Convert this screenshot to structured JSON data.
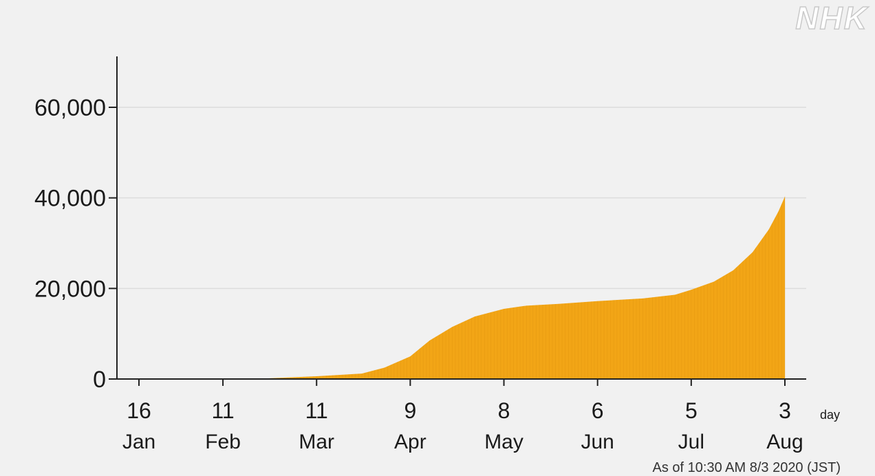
{
  "brand": {
    "watermark": "NHK"
  },
  "timestamp": "As of 10:30 AM 8/3 2020 (JST)",
  "chart_data": {
    "type": "area",
    "title": "",
    "xlabel": "day",
    "ylabel": "",
    "ylim": [
      0,
      70000
    ],
    "yticks": [
      {
        "value": 0,
        "label": "0"
      },
      {
        "value": 20000,
        "label": "20,000"
      },
      {
        "value": 40000,
        "label": "40,000"
      },
      {
        "value": 60000,
        "label": "60,000"
      }
    ],
    "xlim": [
      "2020-01-16",
      "2020-08-03"
    ],
    "xticks": [
      {
        "date": "2020-01-16",
        "day": "16",
        "month": "Jan"
      },
      {
        "date": "2020-02-11",
        "day": "11",
        "month": "Feb"
      },
      {
        "date": "2020-03-11",
        "day": "11",
        "month": "Mar"
      },
      {
        "date": "2020-04-09",
        "day": "9",
        "month": "Apr"
      },
      {
        "date": "2020-05-08",
        "day": "8",
        "month": "May"
      },
      {
        "date": "2020-06-06",
        "day": "6",
        "month": "Jun"
      },
      {
        "date": "2020-07-05",
        "day": "5",
        "month": "Jul"
      },
      {
        "date": "2020-08-03",
        "day": "3",
        "month": "Aug"
      }
    ],
    "grid": true,
    "colors": {
      "fill": "#F2A516",
      "grid": "#dcdcdc",
      "axis": "#222222"
    },
    "series": [
      {
        "points": [
          {
            "x": "2020-01-16",
            "y": 0
          },
          {
            "x": "2020-02-11",
            "y": 0
          },
          {
            "x": "2020-02-25",
            "y": 150
          },
          {
            "x": "2020-03-11",
            "y": 600
          },
          {
            "x": "2020-03-25",
            "y": 1200
          },
          {
            "x": "2020-04-01",
            "y": 2500
          },
          {
            "x": "2020-04-09",
            "y": 5000
          },
          {
            "x": "2020-04-15",
            "y": 8500
          },
          {
            "x": "2020-04-22",
            "y": 11500
          },
          {
            "x": "2020-04-29",
            "y": 13800
          },
          {
            "x": "2020-05-08",
            "y": 15500
          },
          {
            "x": "2020-05-15",
            "y": 16200
          },
          {
            "x": "2020-05-25",
            "y": 16600
          },
          {
            "x": "2020-06-06",
            "y": 17200
          },
          {
            "x": "2020-06-20",
            "y": 17800
          },
          {
            "x": "2020-06-30",
            "y": 18600
          },
          {
            "x": "2020-07-05",
            "y": 19700
          },
          {
            "x": "2020-07-12",
            "y": 21500
          },
          {
            "x": "2020-07-18",
            "y": 24000
          },
          {
            "x": "2020-07-24",
            "y": 28000
          },
          {
            "x": "2020-07-29",
            "y": 33000
          },
          {
            "x": "2020-08-01",
            "y": 37000
          },
          {
            "x": "2020-08-03",
            "y": 40300
          }
        ]
      }
    ]
  }
}
